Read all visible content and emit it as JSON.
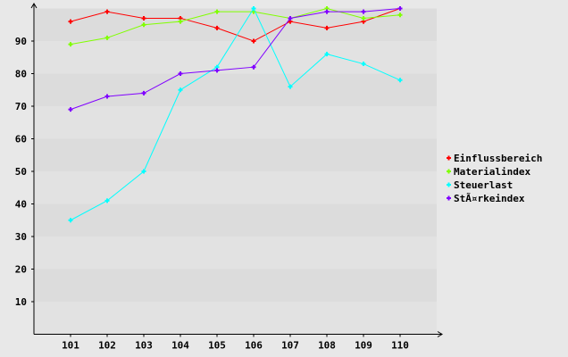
{
  "chart_data": {
    "type": "line",
    "title": "",
    "xlabel": "",
    "ylabel": "",
    "categories": [
      "101",
      "102",
      "103",
      "104",
      "105",
      "106",
      "107",
      "108",
      "109",
      "110"
    ],
    "yticks": [
      10,
      20,
      30,
      40,
      50,
      60,
      70,
      80,
      90
    ],
    "ylim": [
      0,
      100
    ],
    "grid": "alternating horizontal bands",
    "legend_position": "right",
    "series": [
      {
        "name": "Einflussbereich",
        "color": "#ff0000",
        "values": [
          96,
          99,
          97,
          97,
          94,
          90,
          96,
          94,
          96,
          100
        ]
      },
      {
        "name": "Materialindex",
        "color": "#80ff00",
        "values": [
          89,
          91,
          95,
          96,
          99,
          99,
          97,
          100,
          97,
          98
        ]
      },
      {
        "name": "Steuerlast",
        "color": "#00ffff",
        "values": [
          35,
          41,
          50,
          75,
          82,
          100,
          76,
          86,
          83,
          78
        ]
      },
      {
        "name": "StÃ¤rkeindex",
        "color": "#8000ff",
        "values": [
          69,
          73,
          74,
          80,
          81,
          82,
          97,
          99,
          99,
          100
        ]
      }
    ]
  }
}
